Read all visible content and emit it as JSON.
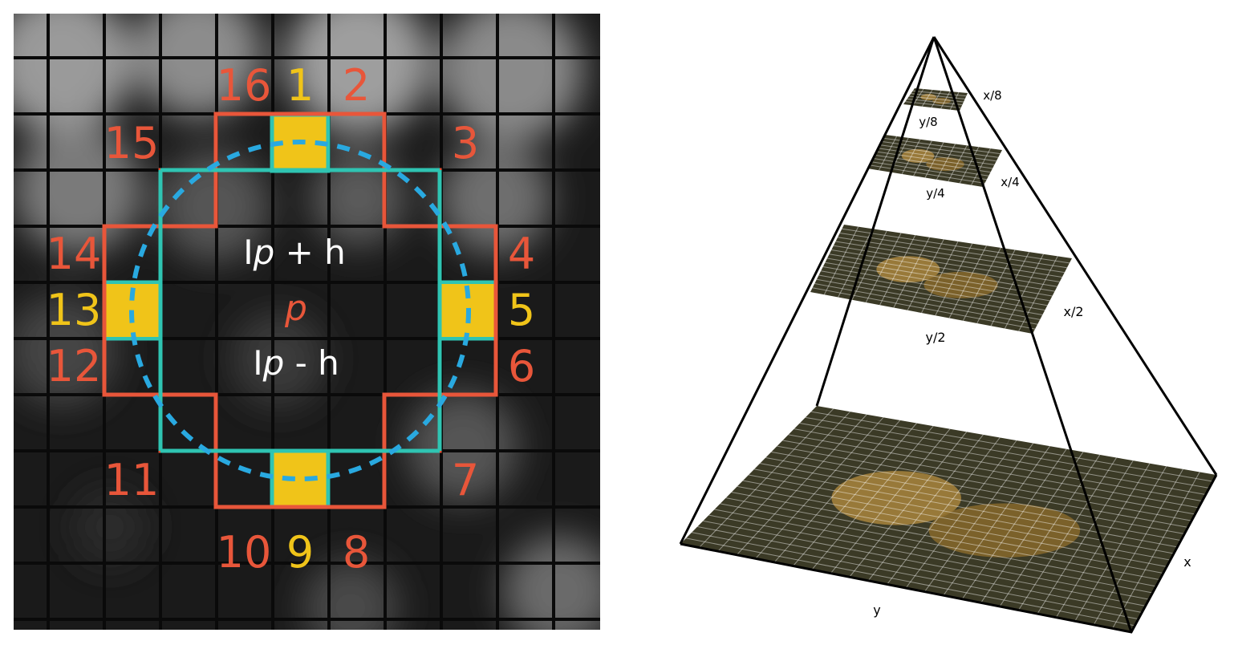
{
  "fast_detector": {
    "center_label": "p",
    "upper_label": {
      "prefix": "I",
      "var": "p",
      "suffix": " + h"
    },
    "lower_label": {
      "prefix": "I",
      "var": "p",
      "suffix": " - h"
    },
    "circle_pixel_labels": [
      "1",
      "2",
      "3",
      "4",
      "5",
      "6",
      "7",
      "8",
      "9",
      "10",
      "11",
      "12",
      "13",
      "14",
      "15",
      "16"
    ],
    "highlighted_pixels": [
      "1",
      "5",
      "9",
      "13"
    ],
    "colors": {
      "ring_outline": "#e8563a",
      "inner_outline": "#2fc4b2",
      "dashed_circle": "#29a9e0",
      "highlight_fill": "#f0c419",
      "highlight_label": "#f0c419",
      "label_default": "#e8563a",
      "text_white": "#ffffff"
    }
  },
  "image_pyramid": {
    "levels": [
      {
        "x_label": "x",
        "y_label": "y"
      },
      {
        "x_label": "x/2",
        "y_label": "y/2"
      },
      {
        "x_label": "x/4",
        "y_label": "y/4"
      },
      {
        "x_label": "x/8",
        "y_label": "y/8"
      }
    ],
    "colors": {
      "frame": "#000000",
      "grid": "#ffffff"
    }
  }
}
